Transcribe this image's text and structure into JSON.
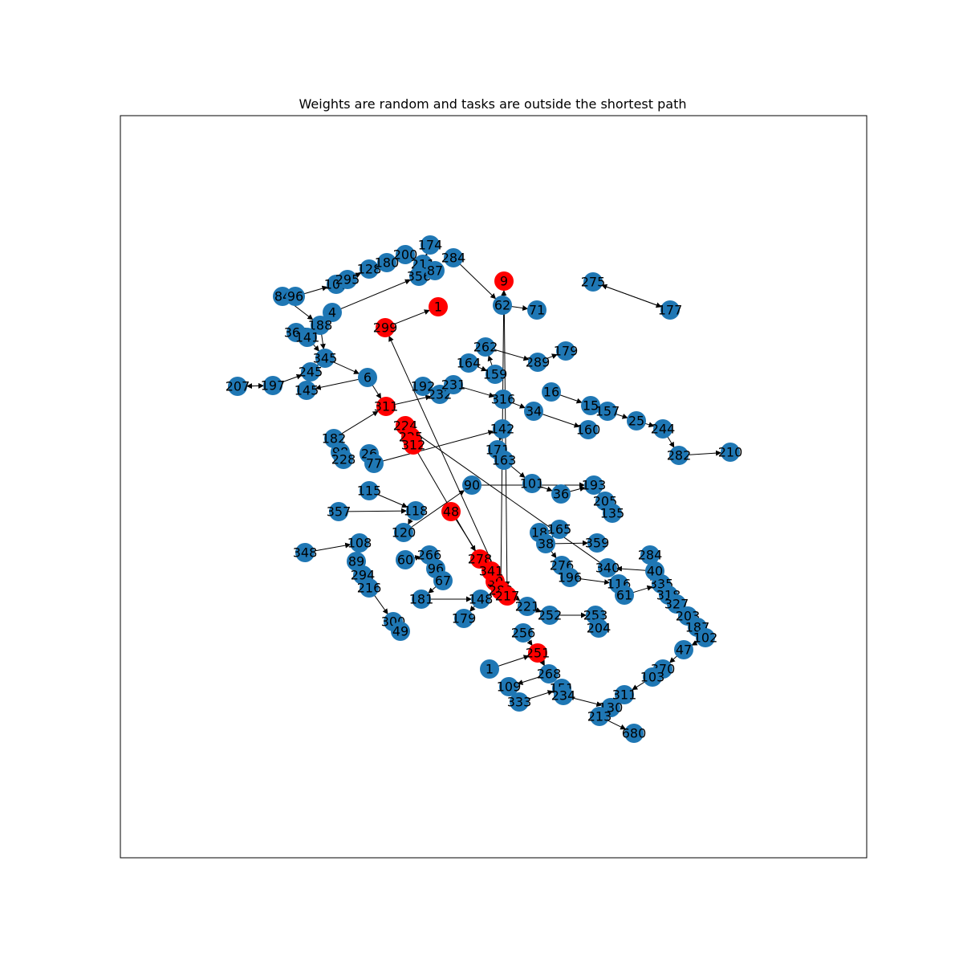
{
  "title": "Weights are random and tasks are outside the shortest path",
  "colors": {
    "node_default": "#1f77b4",
    "node_path": "#ff0000",
    "edge": "#000000",
    "frame": "#000000",
    "background": "#ffffff"
  },
  "graph": {
    "nodes": [
      {
        "id": "174"
      },
      {
        "id": "200"
      },
      {
        "id": "211"
      },
      {
        "id": "284"
      },
      {
        "id": "356"
      },
      {
        "id": "87"
      },
      {
        "id": "107"
      },
      {
        "id": "295"
      },
      {
        "id": "128"
      },
      {
        "id": "180"
      },
      {
        "id": "84"
      },
      {
        "id": "96"
      },
      {
        "id": "4"
      },
      {
        "id": "188"
      },
      {
        "id": "364"
      },
      {
        "id": "141"
      },
      {
        "id": "345"
      },
      {
        "id": "6"
      },
      {
        "id": "207"
      },
      {
        "id": "197"
      },
      {
        "id": "145"
      },
      {
        "id": "245"
      },
      {
        "id": "262"
      },
      {
        "id": "164"
      },
      {
        "id": "159"
      },
      {
        "id": "289"
      },
      {
        "id": "179"
      },
      {
        "id": "192"
      },
      {
        "id": "232"
      },
      {
        "id": "316"
      },
      {
        "id": "34"
      },
      {
        "id": "160"
      },
      {
        "id": "16"
      },
      {
        "id": "15"
      },
      {
        "id": "157"
      },
      {
        "id": "25"
      },
      {
        "id": "244"
      },
      {
        "id": "282"
      },
      {
        "id": "210"
      },
      {
        "id": "182"
      },
      {
        "id": "98"
      },
      {
        "id": "228"
      },
      {
        "id": "26"
      },
      {
        "id": "77"
      },
      {
        "id": "142"
      },
      {
        "id": "171"
      },
      {
        "id": "163"
      },
      {
        "id": "101"
      },
      {
        "id": "36"
      },
      {
        "id": "193"
      },
      {
        "id": "205"
      },
      {
        "id": "135"
      },
      {
        "id": "115"
      },
      {
        "id": "357"
      },
      {
        "id": "118"
      },
      {
        "id": "120"
      },
      {
        "id": "90"
      },
      {
        "id": "348"
      },
      {
        "id": "108"
      },
      {
        "id": "89"
      },
      {
        "id": "294"
      },
      {
        "id": "216"
      },
      {
        "id": "300"
      },
      {
        "id": "49"
      },
      {
        "id": "60"
      },
      {
        "id": "266"
      },
      {
        "id": "96b"
      },
      {
        "id": "67"
      },
      {
        "id": "181"
      },
      {
        "id": "148"
      },
      {
        "id": "179b"
      },
      {
        "id": "165"
      },
      {
        "id": "18"
      },
      {
        "id": "38"
      },
      {
        "id": "359"
      },
      {
        "id": "276"
      },
      {
        "id": "196"
      },
      {
        "id": "116"
      },
      {
        "id": "61"
      },
      {
        "id": "335"
      },
      {
        "id": "318"
      },
      {
        "id": "327"
      },
      {
        "id": "203"
      },
      {
        "id": "187"
      },
      {
        "id": "102"
      },
      {
        "id": "47"
      },
      {
        "id": "370"
      },
      {
        "id": "103"
      },
      {
        "id": "221"
      },
      {
        "id": "252"
      },
      {
        "id": "253"
      },
      {
        "id": "204"
      },
      {
        "id": "256"
      },
      {
        "id": "1"
      },
      {
        "id": "268"
      },
      {
        "id": "109"
      },
      {
        "id": "333"
      },
      {
        "id": "151"
      },
      {
        "id": "234"
      },
      {
        "id": "130"
      },
      {
        "id": "213"
      },
      {
        "id": "680"
      },
      {
        "id": "177"
      },
      {
        "id": "275"
      },
      {
        "id": "71"
      },
      {
        "id": "62"
      },
      {
        "id": "284b"
      },
      {
        "id": "40"
      },
      {
        "id": "340"
      },
      {
        "id": "311"
      },
      {
        "id": "224"
      },
      {
        "id": "225"
      },
      {
        "id": "312"
      },
      {
        "id": "231"
      },
      {
        "id": "30"
      },
      {
        "id": "251"
      },
      {
        "id": "48"
      },
      {
        "id": "311b"
      },
      {
        "id": "278"
      },
      {
        "id": "341"
      },
      {
        "id": "280"
      },
      {
        "id": "1b"
      },
      {
        "id": "9"
      },
      {
        "id": "217"
      },
      {
        "id": "299"
      }
    ],
    "edges": [
      [
        "107",
        "295"
      ],
      [
        "295",
        "128"
      ],
      [
        "128",
        "180"
      ],
      [
        "180",
        "200"
      ],
      [
        "200",
        "211"
      ],
      [
        "211",
        "174"
      ],
      [
        "84",
        "96"
      ],
      [
        "96",
        "107"
      ],
      [
        "4",
        "356"
      ],
      [
        "356",
        "211"
      ],
      [
        "188",
        "4"
      ],
      [
        "84",
        "188"
      ],
      [
        "188",
        "345"
      ],
      [
        "364",
        "141"
      ],
      [
        "141",
        "345"
      ],
      [
        "345",
        "6"
      ],
      [
        "6",
        "145"
      ],
      [
        "197",
        "207"
      ],
      [
        "207",
        "197"
      ],
      [
        "197",
        "245"
      ],
      [
        "245",
        "345"
      ],
      [
        "6",
        "311"
      ],
      [
        "311",
        "232"
      ],
      [
        "232",
        "231"
      ],
      [
        "231",
        "316"
      ],
      [
        "316",
        "34"
      ],
      [
        "34",
        "160"
      ],
      [
        "16",
        "15"
      ],
      [
        "15",
        "157"
      ],
      [
        "157",
        "25"
      ],
      [
        "25",
        "244"
      ],
      [
        "244",
        "282"
      ],
      [
        "282",
        "210"
      ],
      [
        "262",
        "289"
      ],
      [
        "289",
        "179"
      ],
      [
        "164",
        "159"
      ],
      [
        "159",
        "262"
      ],
      [
        "182",
        "311"
      ],
      [
        "182",
        "98"
      ],
      [
        "98",
        "228"
      ],
      [
        "26",
        "77"
      ],
      [
        "77",
        "142"
      ],
      [
        "142",
        "171"
      ],
      [
        "171",
        "163"
      ],
      [
        "163",
        "101"
      ],
      [
        "101",
        "36"
      ],
      [
        "36",
        "193"
      ],
      [
        "193",
        "205"
      ],
      [
        "205",
        "135"
      ],
      [
        "115",
        "118"
      ],
      [
        "357",
        "118"
      ],
      [
        "118",
        "120"
      ],
      [
        "120",
        "90"
      ],
      [
        "90",
        "193"
      ],
      [
        "348",
        "108"
      ],
      [
        "108",
        "89"
      ],
      [
        "89",
        "294"
      ],
      [
        "294",
        "216"
      ],
      [
        "216",
        "300"
      ],
      [
        "300",
        "49"
      ],
      [
        "60",
        "266"
      ],
      [
        "266",
        "96b"
      ],
      [
        "96b",
        "67"
      ],
      [
        "67",
        "181"
      ],
      [
        "181",
        "148"
      ],
      [
        "148",
        "179b"
      ],
      [
        "18",
        "165"
      ],
      [
        "165",
        "38"
      ],
      [
        "38",
        "359"
      ],
      [
        "38",
        "276"
      ],
      [
        "276",
        "196"
      ],
      [
        "196",
        "116"
      ],
      [
        "116",
        "61"
      ],
      [
        "61",
        "335"
      ],
      [
        "335",
        "318"
      ],
      [
        "318",
        "327"
      ],
      [
        "327",
        "203"
      ],
      [
        "203",
        "187"
      ],
      [
        "187",
        "102"
      ],
      [
        "102",
        "47"
      ],
      [
        "47",
        "370"
      ],
      [
        "370",
        "103"
      ],
      [
        "103",
        "311b"
      ],
      [
        "221",
        "252"
      ],
      [
        "252",
        "253"
      ],
      [
        "253",
        "204"
      ],
      [
        "256",
        "251"
      ],
      [
        "1",
        "251"
      ],
      [
        "251",
        "268"
      ],
      [
        "268",
        "109"
      ],
      [
        "109",
        "333"
      ],
      [
        "333",
        "151"
      ],
      [
        "151",
        "234"
      ],
      [
        "234",
        "130"
      ],
      [
        "130",
        "213"
      ],
      [
        "213",
        "680"
      ],
      [
        "275",
        "177"
      ],
      [
        "177",
        "275"
      ],
      [
        "62",
        "71"
      ],
      [
        "40",
        "340"
      ],
      [
        "340",
        "224"
      ],
      [
        "224",
        "225"
      ],
      [
        "225",
        "312"
      ],
      [
        "312",
        "278"
      ],
      [
        "278",
        "341"
      ],
      [
        "341",
        "280"
      ],
      [
        "280",
        "9"
      ],
      [
        "9",
        "217"
      ],
      [
        "217",
        "299"
      ],
      [
        "299",
        "1b"
      ],
      [
        "284b",
        "40"
      ],
      [
        "30",
        "221"
      ],
      [
        "48",
        "30"
      ],
      [
        "284",
        "62"
      ]
    ],
    "path_nodes": [
      "224",
      "225",
      "312",
      "311",
      "278",
      "341",
      "280",
      "9",
      "217",
      "48",
      "30",
      "251",
      "299",
      "1b"
    ]
  }
}
